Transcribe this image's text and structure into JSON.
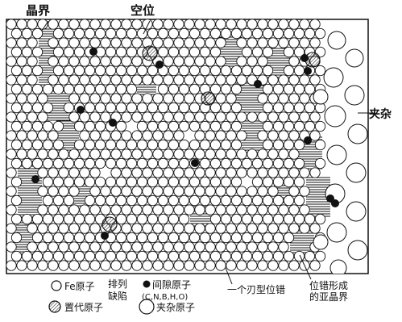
{
  "labels": {
    "grain_boundary": "晶界",
    "vacancy": "空位",
    "inclusion": "夹杂",
    "edge_dislocation": "一个刃型位错",
    "subgrain_boundary_line1": "位错形成",
    "subgrain_boundary_line2": "的亚晶界"
  },
  "legend": {
    "fe_atom": "Fe原子",
    "stacking_line1": "排列",
    "stacking_line2": "缺陷",
    "interstitial": "间隙原子",
    "interstitial_elements": "(C,N,B,H,O)",
    "substitutional": "置代原子",
    "inclusion_atom": "夹杂原子"
  },
  "colors": {
    "ink": "#111111",
    "background": "#ffffff",
    "hatch": "#333333"
  },
  "icons": {
    "fe": "open-circle-icon",
    "interstitial": "filled-dot-icon",
    "substitutional": "hatched-circle-icon",
    "inclusion": "large-open-circle-icon"
  }
}
